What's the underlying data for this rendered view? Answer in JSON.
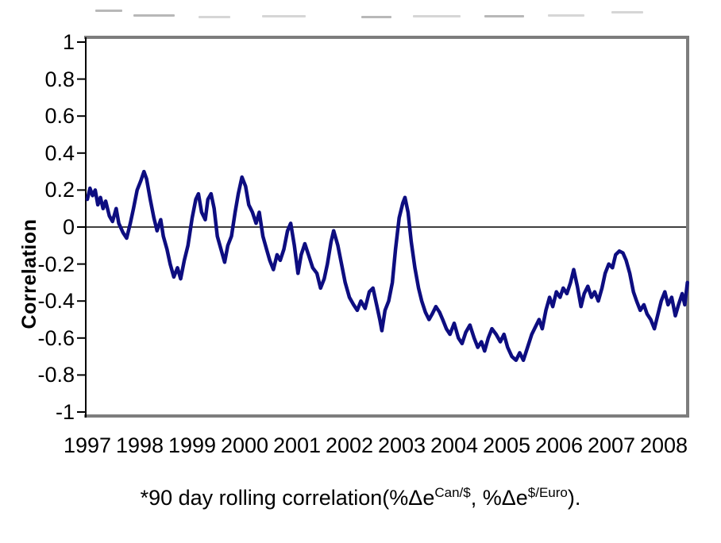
{
  "figure": {
    "cropped_title_visible": false,
    "background": "#ffffff"
  },
  "caption": {
    "prefix": "*90 day rolling correlation(%Δe",
    "sup1": "Can/$",
    "mid": ", %Δe",
    "sup2": "$/Euro",
    "suffix": ")."
  },
  "chart_data": {
    "type": "line",
    "title": "",
    "ylabel": "Correlation",
    "xlabel": "",
    "ylim": [
      -1,
      1
    ],
    "xlim": [
      1997,
      2008.5
    ],
    "grid": false,
    "zero_line": true,
    "line_color": "#0d0d80",
    "border_color": "#7d7d7d",
    "axis_color": "#000000",
    "y_ticks": [
      1,
      0.8,
      0.6,
      0.4,
      0.2,
      0,
      -0.2,
      -0.4,
      -0.6,
      -0.8,
      -1
    ],
    "y_tick_labels": [
      "1",
      "0.8",
      "0.6",
      "0.4",
      "0.2",
      "0",
      "-0.2",
      "-0.4",
      "-0.6",
      "-0.8",
      "-1"
    ],
    "x_tick_labels": [
      "1997",
      "1998",
      "1999",
      "2000",
      "2001",
      "2002",
      "2003",
      "2004",
      "2005",
      "2006",
      "2007",
      "2008"
    ],
    "series": [
      {
        "name": "90 day rolling correlation",
        "points": [
          [
            1997.0,
            0.15
          ],
          [
            1997.05,
            0.21
          ],
          [
            1997.1,
            0.17
          ],
          [
            1997.15,
            0.2
          ],
          [
            1997.2,
            0.12
          ],
          [
            1997.25,
            0.16
          ],
          [
            1997.3,
            0.1
          ],
          [
            1997.35,
            0.14
          ],
          [
            1997.42,
            0.06
          ],
          [
            1997.48,
            0.03
          ],
          [
            1997.55,
            0.1
          ],
          [
            1997.6,
            0.02
          ],
          [
            1997.68,
            -0.03
          ],
          [
            1997.75,
            -0.06
          ],
          [
            1997.82,
            0.02
          ],
          [
            1997.88,
            0.1
          ],
          [
            1997.95,
            0.2
          ],
          [
            1998.02,
            0.25
          ],
          [
            1998.08,
            0.3
          ],
          [
            1998.13,
            0.26
          ],
          [
            1998.2,
            0.15
          ],
          [
            1998.27,
            0.05
          ],
          [
            1998.33,
            -0.02
          ],
          [
            1998.4,
            0.04
          ],
          [
            1998.45,
            -0.05
          ],
          [
            1998.52,
            -0.12
          ],
          [
            1998.58,
            -0.2
          ],
          [
            1998.65,
            -0.27
          ],
          [
            1998.72,
            -0.22
          ],
          [
            1998.78,
            -0.28
          ],
          [
            1998.85,
            -0.18
          ],
          [
            1998.92,
            -0.1
          ],
          [
            1999.0,
            0.05
          ],
          [
            1999.07,
            0.15
          ],
          [
            1999.12,
            0.18
          ],
          [
            1999.18,
            0.08
          ],
          [
            1999.25,
            0.04
          ],
          [
            1999.3,
            0.15
          ],
          [
            1999.36,
            0.18
          ],
          [
            1999.42,
            0.1
          ],
          [
            1999.48,
            -0.05
          ],
          [
            1999.55,
            -0.12
          ],
          [
            1999.62,
            -0.19
          ],
          [
            1999.68,
            -0.1
          ],
          [
            1999.75,
            -0.05
          ],
          [
            1999.82,
            0.08
          ],
          [
            1999.88,
            0.18
          ],
          [
            1999.95,
            0.27
          ],
          [
            2000.02,
            0.22
          ],
          [
            2000.08,
            0.12
          ],
          [
            2000.15,
            0.08
          ],
          [
            2000.22,
            0.02
          ],
          [
            2000.28,
            0.08
          ],
          [
            2000.35,
            -0.05
          ],
          [
            2000.42,
            -0.12
          ],
          [
            2000.48,
            -0.18
          ],
          [
            2000.55,
            -0.23
          ],
          [
            2000.62,
            -0.15
          ],
          [
            2000.68,
            -0.18
          ],
          [
            2000.75,
            -0.12
          ],
          [
            2000.82,
            -0.02
          ],
          [
            2000.88,
            0.02
          ],
          [
            2000.95,
            -0.1
          ],
          [
            2001.02,
            -0.25
          ],
          [
            2001.08,
            -0.15
          ],
          [
            2001.15,
            -0.09
          ],
          [
            2001.22,
            -0.15
          ],
          [
            2001.3,
            -0.22
          ],
          [
            2001.38,
            -0.25
          ],
          [
            2001.45,
            -0.33
          ],
          [
            2001.52,
            -0.28
          ],
          [
            2001.58,
            -0.2
          ],
          [
            2001.65,
            -0.08
          ],
          [
            2001.7,
            -0.02
          ],
          [
            2001.78,
            -0.1
          ],
          [
            2001.85,
            -0.2
          ],
          [
            2001.92,
            -0.3
          ],
          [
            2002.0,
            -0.38
          ],
          [
            2002.08,
            -0.42
          ],
          [
            2002.15,
            -0.45
          ],
          [
            2002.22,
            -0.4
          ],
          [
            2002.3,
            -0.44
          ],
          [
            2002.38,
            -0.35
          ],
          [
            2002.45,
            -0.33
          ],
          [
            2002.52,
            -0.42
          ],
          [
            2002.58,
            -0.5
          ],
          [
            2002.62,
            -0.56
          ],
          [
            2002.68,
            -0.45
          ],
          [
            2002.75,
            -0.4
          ],
          [
            2002.82,
            -0.3
          ],
          [
            2002.88,
            -0.12
          ],
          [
            2002.95,
            0.05
          ],
          [
            2003.02,
            0.13
          ],
          [
            2003.06,
            0.16
          ],
          [
            2003.12,
            0.08
          ],
          [
            2003.18,
            -0.08
          ],
          [
            2003.25,
            -0.22
          ],
          [
            2003.32,
            -0.33
          ],
          [
            2003.38,
            -0.4
          ],
          [
            2003.45,
            -0.46
          ],
          [
            2003.52,
            -0.5
          ],
          [
            2003.58,
            -0.47
          ],
          [
            2003.65,
            -0.43
          ],
          [
            2003.72,
            -0.46
          ],
          [
            2003.78,
            -0.5
          ],
          [
            2003.85,
            -0.55
          ],
          [
            2003.92,
            -0.58
          ],
          [
            2004.0,
            -0.52
          ],
          [
            2004.08,
            -0.6
          ],
          [
            2004.15,
            -0.63
          ],
          [
            2004.22,
            -0.57
          ],
          [
            2004.3,
            -0.53
          ],
          [
            2004.38,
            -0.6
          ],
          [
            2004.45,
            -0.65
          ],
          [
            2004.52,
            -0.62
          ],
          [
            2004.58,
            -0.67
          ],
          [
            2004.65,
            -0.6
          ],
          [
            2004.72,
            -0.55
          ],
          [
            2004.8,
            -0.58
          ],
          [
            2004.88,
            -0.62
          ],
          [
            2004.95,
            -0.58
          ],
          [
            2005.02,
            -0.65
          ],
          [
            2005.1,
            -0.7
          ],
          [
            2005.18,
            -0.72
          ],
          [
            2005.25,
            -0.68
          ],
          [
            2005.32,
            -0.72
          ],
          [
            2005.4,
            -0.65
          ],
          [
            2005.48,
            -0.58
          ],
          [
            2005.55,
            -0.54
          ],
          [
            2005.62,
            -0.5
          ],
          [
            2005.68,
            -0.55
          ],
          [
            2005.75,
            -0.45
          ],
          [
            2005.82,
            -0.38
          ],
          [
            2005.88,
            -0.43
          ],
          [
            2005.95,
            -0.35
          ],
          [
            2006.02,
            -0.38
          ],
          [
            2006.08,
            -0.33
          ],
          [
            2006.15,
            -0.36
          ],
          [
            2006.22,
            -0.3
          ],
          [
            2006.28,
            -0.23
          ],
          [
            2006.35,
            -0.32
          ],
          [
            2006.42,
            -0.43
          ],
          [
            2006.48,
            -0.36
          ],
          [
            2006.55,
            -0.32
          ],
          [
            2006.62,
            -0.38
          ],
          [
            2006.68,
            -0.35
          ],
          [
            2006.75,
            -0.4
          ],
          [
            2006.82,
            -0.33
          ],
          [
            2006.88,
            -0.25
          ],
          [
            2006.95,
            -0.2
          ],
          [
            2007.02,
            -0.22
          ],
          [
            2007.08,
            -0.15
          ],
          [
            2007.15,
            -0.13
          ],
          [
            2007.22,
            -0.14
          ],
          [
            2007.28,
            -0.18
          ],
          [
            2007.35,
            -0.25
          ],
          [
            2007.42,
            -0.35
          ],
          [
            2007.48,
            -0.4
          ],
          [
            2007.55,
            -0.45
          ],
          [
            2007.62,
            -0.42
          ],
          [
            2007.68,
            -0.47
          ],
          [
            2007.75,
            -0.5
          ],
          [
            2007.82,
            -0.55
          ],
          [
            2007.88,
            -0.48
          ],
          [
            2007.95,
            -0.4
          ],
          [
            2008.02,
            -0.35
          ],
          [
            2008.08,
            -0.42
          ],
          [
            2008.15,
            -0.38
          ],
          [
            2008.22,
            -0.48
          ],
          [
            2008.28,
            -0.42
          ],
          [
            2008.35,
            -0.36
          ],
          [
            2008.4,
            -0.42
          ],
          [
            2008.45,
            -0.3
          ]
        ]
      }
    ]
  }
}
